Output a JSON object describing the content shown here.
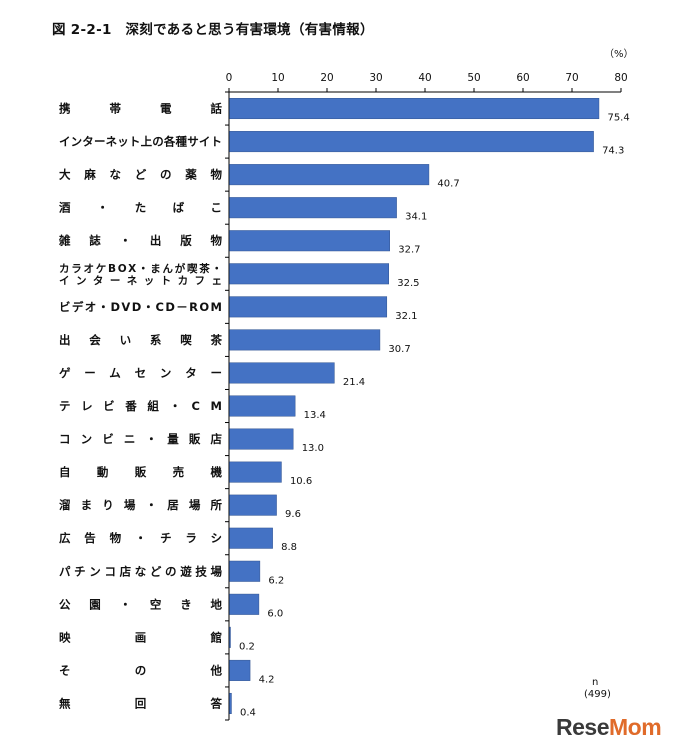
{
  "title": "図 2-2-1　深刻であると思う有害環境（有害情報）",
  "unit": "（%）",
  "n_label": "n",
  "n_value": "(499)",
  "watermark": {
    "part1": "Rese",
    "part2": "Mom"
  },
  "colors": {
    "bar": "#4472C4",
    "bar_stroke": "#2F528F",
    "axis": "#000000",
    "grid": "#bfbfbf",
    "accent": "#e06b2a"
  },
  "chart_data": {
    "type": "bar",
    "orientation": "horizontal",
    "title": "深刻であると思う有害環境（有害情報）",
    "xlabel": "",
    "ylabel": "",
    "xlim": [
      0,
      80
    ],
    "xticks": [
      0,
      10,
      20,
      30,
      40,
      50,
      60,
      70,
      80
    ],
    "grid": false,
    "legend": "none",
    "categories": [
      "携　帯　電　話",
      "インターネット上の各種サイト",
      "大麻などの薬物",
      "酒・たばこ",
      "雑誌・出版物",
      "カラオケBOX・まんが喫茶・\nインターネットカフェ",
      "ビデオ・DVD・CD－ROM",
      "出会い系喫茶",
      "ゲームセンター",
      "テレビ番組・CM",
      "コンビニ・量販店",
      "自動販売機",
      "溜まり場・居場所",
      "広告物・チラシ",
      "パチンコ店などの遊技場",
      "公園・空き地",
      "映　画　館",
      "そ　の　他",
      "無　回　答"
    ],
    "values": [
      75.4,
      74.3,
      40.7,
      34.1,
      32.7,
      32.5,
      32.1,
      30.7,
      21.4,
      13.4,
      13.0,
      10.6,
      9.6,
      8.8,
      6.2,
      6.0,
      0.2,
      4.2,
      0.4
    ],
    "value_labels": [
      "75.4",
      "74.3",
      "40.7",
      "34.1",
      "32.7",
      "32.5",
      "32.1",
      "30.7",
      "21.4",
      "13.4",
      "13.0",
      "10.6",
      "9.6",
      "8.8",
      "6.2",
      "6.0",
      "0.2",
      "4.2",
      "0.4"
    ]
  }
}
